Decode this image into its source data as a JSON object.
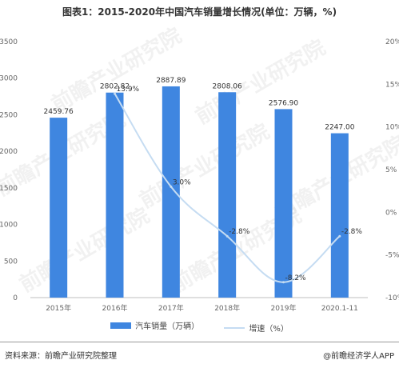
{
  "title": "图表1：2015-2020年中国汽车销量增长情况(单位：万辆，%)",
  "source": "资料来源：前瞻产业研究院整理",
  "brand": "@前瞻经济学人APP",
  "watermark_text": "前瞻产业研究院",
  "chart_data": {
    "type": "bar",
    "categories": [
      "2015年",
      "2016年",
      "2017年",
      "2018年",
      "2019年",
      "2020.1-11"
    ],
    "series": [
      {
        "name": "汽车销量（万辆）",
        "type": "bar",
        "axis": "left",
        "color": "#3f86e0",
        "values": [
          2459.76,
          2802.82,
          2887.89,
          2808.06,
          2576.9,
          2247.0
        ],
        "labels": [
          "2459.76",
          "2802.82",
          "2887.89",
          "2808.06",
          "2576.90",
          "2247.00"
        ]
      },
      {
        "name": "增速（%）",
        "type": "line",
        "axis": "right",
        "color": "#c5dcf2",
        "values": [
          null,
          13.9,
          3.0,
          -2.8,
          -8.2,
          -2.8
        ],
        "labels": [
          "",
          "13.9%",
          "3.0%",
          "-2.8%",
          "-8.2%",
          "-2.8%"
        ]
      }
    ],
    "y_left": {
      "min": 0,
      "max": 3500,
      "ticks": [
        0,
        500,
        1000,
        1500,
        2000,
        2500,
        3000,
        3500
      ]
    },
    "y_right": {
      "min": -10,
      "max": 20,
      "ticks": [
        -10,
        -5,
        0,
        5,
        10,
        15,
        20
      ],
      "tick_labels": [
        "-10%",
        "-5%",
        "0%",
        "5%",
        "10%",
        "15%",
        "20%"
      ]
    },
    "grid": false,
    "legend_position": "bottom"
  }
}
